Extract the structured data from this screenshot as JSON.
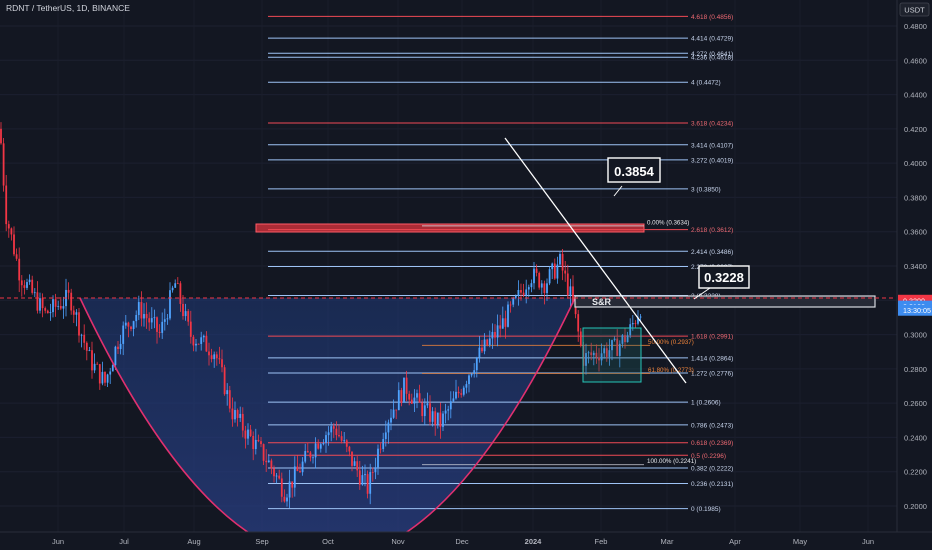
{
  "header": {
    "symbol": "RDNT / TetherUS, 1D, BINANCE",
    "currency_button": "USDT"
  },
  "colors": {
    "background": "#131722",
    "bull": "#4fa3ff",
    "bear": "#f23645",
    "fib_blue": "#9ec3f5",
    "fib_red": "#ef4a55",
    "label": "#b8bcc7"
  },
  "annotations": {
    "target_1": "0.3854",
    "target_2": "0.3228",
    "sr_label": "S&R"
  },
  "chart_data": {
    "type": "candlestick",
    "y_range": [
      0.1925,
      0.5
    ],
    "y_ticks": [
      "0.4800",
      "0.4600",
      "0.4400",
      "0.4200",
      "0.4000",
      "0.3800",
      "0.3600",
      "0.3400",
      "0.3200",
      "0.3000",
      "0.2800",
      "0.2600",
      "0.2400",
      "0.2200",
      "0.2000"
    ],
    "x_ticks": [
      "Jun",
      "Jul",
      "Aug",
      "Sep",
      "Oct",
      "Nov",
      "Dec",
      "2024",
      "Feb",
      "Mar",
      "Apr",
      "May",
      "Jun"
    ],
    "price_labels": [
      {
        "text": "0.3200",
        "value": 0.32,
        "color": "#f23645"
      },
      {
        "text": "0.3166",
        "value": 0.3166,
        "color": "#3d8cf0"
      },
      {
        "text": "13:30:05",
        "value": 0.3142,
        "color": "#3d8cf0"
      }
    ],
    "fib_extension": [
      {
        "label": "4.618 (0.4856)",
        "value": 0.4856,
        "color": "red"
      },
      {
        "label": "4.414 (0.4729)",
        "value": 0.4729,
        "color": "blue"
      },
      {
        "label": "4.272 (0.4641)",
        "value": 0.4641,
        "color": "blue"
      },
      {
        "label": "4.236 (0.4618)",
        "value": 0.4618,
        "color": "blue"
      },
      {
        "label": "4 (0.4472)",
        "value": 0.4472,
        "color": "blue"
      },
      {
        "label": "3.618 (0.4234)",
        "value": 0.4234,
        "color": "red"
      },
      {
        "label": "3.414 (0.4107)",
        "value": 0.4107,
        "color": "blue"
      },
      {
        "label": "3.272 (0.4019)",
        "value": 0.4019,
        "color": "blue"
      },
      {
        "label": "3 (0.3850)",
        "value": 0.385,
        "color": "blue"
      },
      {
        "label": "2.618 (0.3612)",
        "value": 0.3612,
        "color": "red"
      },
      {
        "label": "2.414 (0.3486)",
        "value": 0.3486,
        "color": "blue"
      },
      {
        "label": "2.272 (0.3397)",
        "value": 0.3397,
        "color": "blue"
      },
      {
        "label": "2 (0.3228)",
        "value": 0.3228,
        "color": "blue"
      },
      {
        "label": "1.618 (0.2991)",
        "value": 0.2991,
        "color": "red"
      },
      {
        "label": "1.414 (0.2864)",
        "value": 0.2864,
        "color": "blue"
      },
      {
        "label": "1.272 (0.2776)",
        "value": 0.2776,
        "color": "blue"
      },
      {
        "label": "1 (0.2606)",
        "value": 0.2606,
        "color": "blue"
      },
      {
        "label": "0.786 (0.2473)",
        "value": 0.2473,
        "color": "blue"
      },
      {
        "label": "0.618 (0.2369)",
        "value": 0.2369,
        "color": "red"
      },
      {
        "label": "0.5 (0.2296)",
        "value": 0.2296,
        "color": "red"
      },
      {
        "label": "0.382 (0.2222)",
        "value": 0.2222,
        "color": "blue"
      },
      {
        "label": "0.236 (0.2131)",
        "value": 0.2131,
        "color": "blue"
      },
      {
        "label": "0 (0.1985)",
        "value": 0.1985,
        "color": "blue"
      }
    ],
    "fib_retracement": [
      {
        "label": "0.00% (0.3634)",
        "value": 0.3634,
        "color": "white"
      },
      {
        "label": "50.00% (0.2937)",
        "value": 0.2937,
        "color": "orange"
      },
      {
        "label": "61.80% (0.2773)",
        "value": 0.2773,
        "color": "orange"
      },
      {
        "label": "100.00% (0.2241)",
        "value": 0.2241,
        "color": "white"
      }
    ]
  }
}
